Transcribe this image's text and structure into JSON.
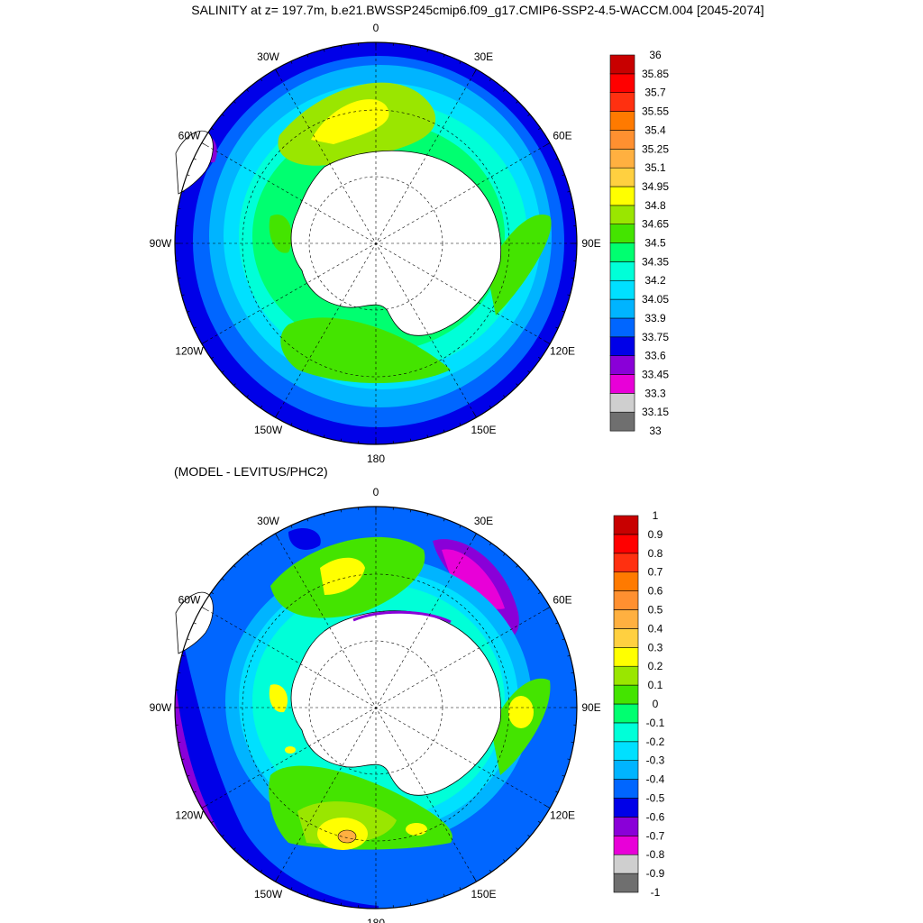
{
  "title": "SALINITY at z= 197.7m, b.e21.BWSSP245cmip6.f09_g17.CMIP6-SSP2-4.5-WACCM.004 [2045-2074]",
  "subtitle": "(MODEL - LEVITUS/PHC2)",
  "lon_labels": [
    "0",
    "30E",
    "60E",
    "90E",
    "120E",
    "150E",
    "180",
    "150W",
    "120W",
    "90W",
    "60W",
    "30W"
  ],
  "colors": {
    "palette": [
      "#6f6f6f",
      "#cfcfcf",
      "#e800d8",
      "#8a00d8",
      "#0000e8",
      "#0066ff",
      "#00b4ff",
      "#00e0ff",
      "#00ffd8",
      "#00ff70",
      "#44e400",
      "#9ae600",
      "#ffff00",
      "#ffd040",
      "#ffb040",
      "#ff9030",
      "#ff7a00",
      "#ff3010",
      "#ff0000",
      "#c80000"
    ],
    "land": "#ffffff",
    "coast": "#000000"
  },
  "maps": [
    {
      "name": "salinity",
      "colorbar": {
        "labels": [
          "36",
          "35.85",
          "35.7",
          "35.55",
          "35.4",
          "35.25",
          "35.1",
          "34.95",
          "34.8",
          "34.65",
          "34.5",
          "34.35",
          "34.2",
          "34.05",
          "33.9",
          "33.75",
          "33.6",
          "33.45",
          "33.3",
          "33.15",
          "33"
        ]
      }
    },
    {
      "name": "difference",
      "colorbar": {
        "labels": [
          "1",
          "0.9",
          "0.8",
          "0.7",
          "0.6",
          "0.5",
          "0.4",
          "0.3",
          "0.2",
          "0.1",
          "0",
          "-0.1",
          "-0.2",
          "-0.3",
          "-0.4",
          "-0.5",
          "-0.6",
          "-0.7",
          "-0.8",
          "-0.9",
          "-1"
        ]
      }
    }
  ]
}
